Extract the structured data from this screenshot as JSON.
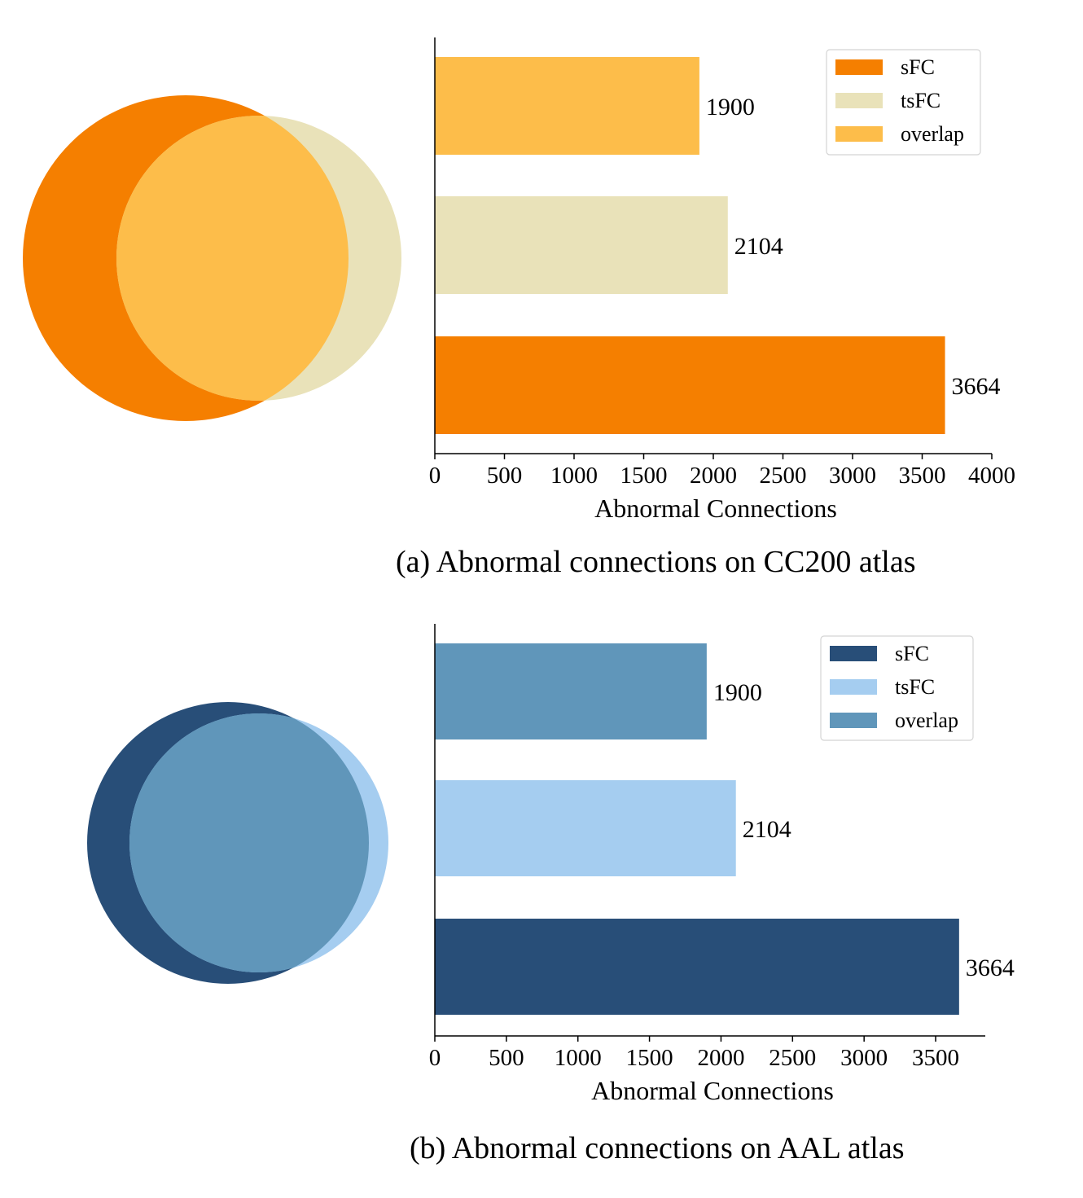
{
  "chart_data": [
    {
      "type": "bar",
      "orientation": "horizontal",
      "caption": "(a) Abnormal connections on CC200 atlas",
      "categories": [
        "sFC",
        "tsFC",
        "overlap"
      ],
      "values": [
        3664,
        2104,
        1900
      ],
      "data_labels": [
        "3664",
        "2104",
        "1900"
      ],
      "colors": [
        "#f57f00",
        "#e9e2b9",
        "#fdbd4a"
      ],
      "xlabel": "Abnormal Connections",
      "ylabel": "",
      "xlim": [
        0,
        4000
      ],
      "xticks": [
        0,
        500,
        1000,
        1500,
        2000,
        2500,
        3000,
        3500,
        4000
      ],
      "xtick_labels": [
        "0",
        "500",
        "1000",
        "1500",
        "2000",
        "2500",
        "3000",
        "3500",
        "4000"
      ],
      "legend": {
        "position": "top-right",
        "entries": [
          {
            "label": "sFC",
            "color": "#f57f00"
          },
          {
            "label": "tsFC",
            "color": "#e9e2b9"
          },
          {
            "label": "overlap",
            "color": "#fdbd4a"
          }
        ]
      },
      "venn": {
        "left_set": "sFC",
        "right_set": "tsFC",
        "left_size": 3664,
        "right_size": 2104,
        "overlap_size": 1900
      }
    },
    {
      "type": "bar",
      "orientation": "horizontal",
      "caption": "(b) Abnormal connections on AAL atlas",
      "categories": [
        "sFC",
        "tsFC",
        "overlap"
      ],
      "values": [
        3664,
        2104,
        1900
      ],
      "data_labels": [
        "3664",
        "2104",
        "1900"
      ],
      "colors": [
        "#284e78",
        "#a5cdf0",
        "#6096ba"
      ],
      "xlabel": "Abnormal Connections",
      "ylabel": "",
      "xlim": [
        0,
        3847
      ],
      "xticks": [
        0,
        500,
        1000,
        1500,
        2000,
        2500,
        3000,
        3500
      ],
      "xtick_labels": [
        "0",
        "500",
        "1000",
        "1500",
        "2000",
        "2500",
        "3000",
        "3500"
      ],
      "legend": {
        "position": "top-right",
        "entries": [
          {
            "label": "sFC",
            "color": "#284e78"
          },
          {
            "label": "tsFC",
            "color": "#a5cdf0"
          },
          {
            "label": "overlap",
            "color": "#6096ba"
          }
        ]
      },
      "venn": {
        "left_set": "sFC",
        "right_set": "tsFC",
        "left_size": 3664,
        "right_size": 2104,
        "overlap_size": 1900
      }
    }
  ]
}
